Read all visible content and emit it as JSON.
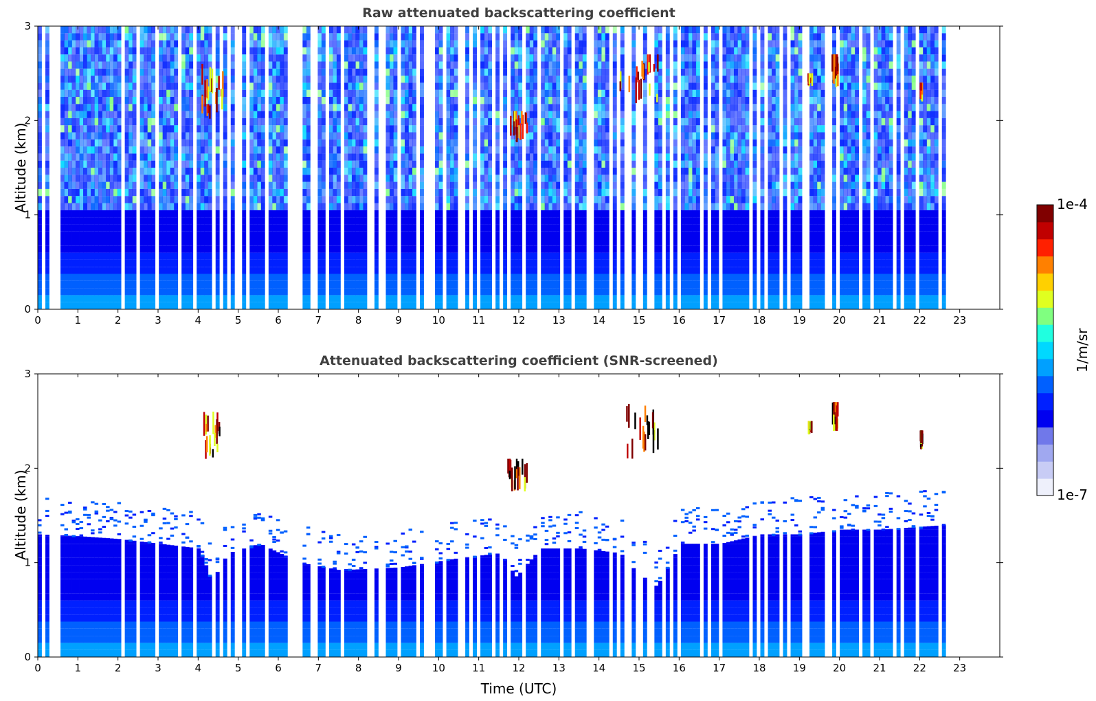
{
  "chart_data": [
    {
      "type": "heatmap",
      "title": "Raw attenuated backscattering coefficient",
      "xlabel": "",
      "ylabel": "Altitude (km)",
      "xlim": [
        0,
        24
      ],
      "ylim": [
        0,
        3
      ],
      "xticks": [
        "0",
        "1",
        "2",
        "3",
        "4",
        "5",
        "6",
        "7",
        "8",
        "9",
        "10",
        "11",
        "12",
        "13",
        "14",
        "15",
        "16",
        "17",
        "18",
        "19",
        "20",
        "21",
        "22",
        "23"
      ],
      "yticks": [
        "0",
        "1",
        "2",
        "3"
      ],
      "data_end_time_utc": 22.65,
      "noise_onset_km": 1.0,
      "cloud_features": [
        {
          "time_start": 4.0,
          "time_end": 4.6,
          "alt_min_km": 2.0,
          "alt_max_km": 2.6
        },
        {
          "time_start": 11.7,
          "time_end": 12.2,
          "alt_min_km": 1.75,
          "alt_max_km": 2.1
        },
        {
          "time_start": 14.5,
          "time_end": 15.5,
          "alt_min_km": 2.1,
          "alt_max_km": 2.7
        },
        {
          "time_start": 19.2,
          "time_end": 19.3,
          "alt_min_km": 2.35,
          "alt_max_km": 2.5
        },
        {
          "time_start": 19.8,
          "time_end": 19.95,
          "alt_min_km": 2.35,
          "alt_max_km": 2.7
        },
        {
          "time_start": 22.0,
          "time_end": 22.05,
          "alt_min_km": 2.2,
          "alt_max_km": 2.4
        }
      ]
    },
    {
      "type": "heatmap",
      "title": "Attenuated backscattering coefficient (SNR-screened)",
      "xlabel": "Time (UTC)",
      "ylabel": "Altitude (km)",
      "xlim": [
        0,
        24
      ],
      "ylim": [
        0,
        3
      ],
      "xticks": [
        "0",
        "1",
        "2",
        "3",
        "4",
        "5",
        "6",
        "7",
        "8",
        "9",
        "10",
        "11",
        "12",
        "13",
        "14",
        "15",
        "16",
        "17",
        "18",
        "19",
        "20",
        "21",
        "22",
        "23"
      ],
      "yticks": [
        "0",
        "1",
        "2",
        "3"
      ],
      "data_end_time_utc": 22.65,
      "boundary_layer_top_km": [
        [
          0.0,
          1.3
        ],
        [
          1.0,
          1.28
        ],
        [
          2.0,
          1.25
        ],
        [
          3.0,
          1.2
        ],
        [
          4.0,
          1.15
        ],
        [
          4.3,
          0.8
        ],
        [
          4.7,
          1.1
        ],
        [
          5.5,
          1.2
        ],
        [
          6.5,
          1.0
        ],
        [
          7.5,
          0.92
        ],
        [
          9.0,
          0.95
        ],
        [
          10.5,
          1.05
        ],
        [
          11.5,
          1.1
        ],
        [
          11.9,
          0.85
        ],
        [
          12.5,
          1.15
        ],
        [
          13.5,
          1.15
        ],
        [
          14.5,
          1.1
        ],
        [
          14.9,
          0.9
        ],
        [
          15.4,
          0.75
        ],
        [
          16.0,
          1.2
        ],
        [
          17.0,
          1.2
        ],
        [
          18.0,
          1.3
        ],
        [
          19.0,
          1.3
        ],
        [
          20.0,
          1.35
        ],
        [
          21.0,
          1.35
        ],
        [
          22.65,
          1.4
        ]
      ],
      "cloud_features": [
        {
          "time_start": 4.0,
          "time_end": 4.6,
          "alt_min_km": 2.0,
          "alt_max_km": 2.6
        },
        {
          "time_start": 11.7,
          "time_end": 12.2,
          "alt_min_km": 1.75,
          "alt_max_km": 2.1
        },
        {
          "time_start": 14.5,
          "time_end": 15.5,
          "alt_min_km": 2.1,
          "alt_max_km": 2.7
        },
        {
          "time_start": 19.2,
          "time_end": 19.3,
          "alt_min_km": 2.35,
          "alt_max_km": 2.5
        },
        {
          "time_start": 19.8,
          "time_end": 19.95,
          "alt_min_km": 2.35,
          "alt_max_km": 2.7
        },
        {
          "time_start": 22.0,
          "time_end": 22.05,
          "alt_min_km": 2.2,
          "alt_max_km": 2.4
        }
      ]
    }
  ],
  "colorbar": {
    "label": "1/m/sr",
    "max_label": "1e-4",
    "min_label": "1e-7",
    "scale": "log",
    "range": [
      1e-07,
      0.0001
    ],
    "colormap": "jet",
    "colors": [
      "#eef0fb",
      "#c8ccf5",
      "#a0a8f0",
      "#7078ea",
      "#0000f0",
      "#0020ff",
      "#0060ff",
      "#00a0ff",
      "#00d8ff",
      "#20ffe0",
      "#80ff80",
      "#e0ff20",
      "#ffd000",
      "#ff8000",
      "#ff2000",
      "#c00000",
      "#800000"
    ]
  }
}
